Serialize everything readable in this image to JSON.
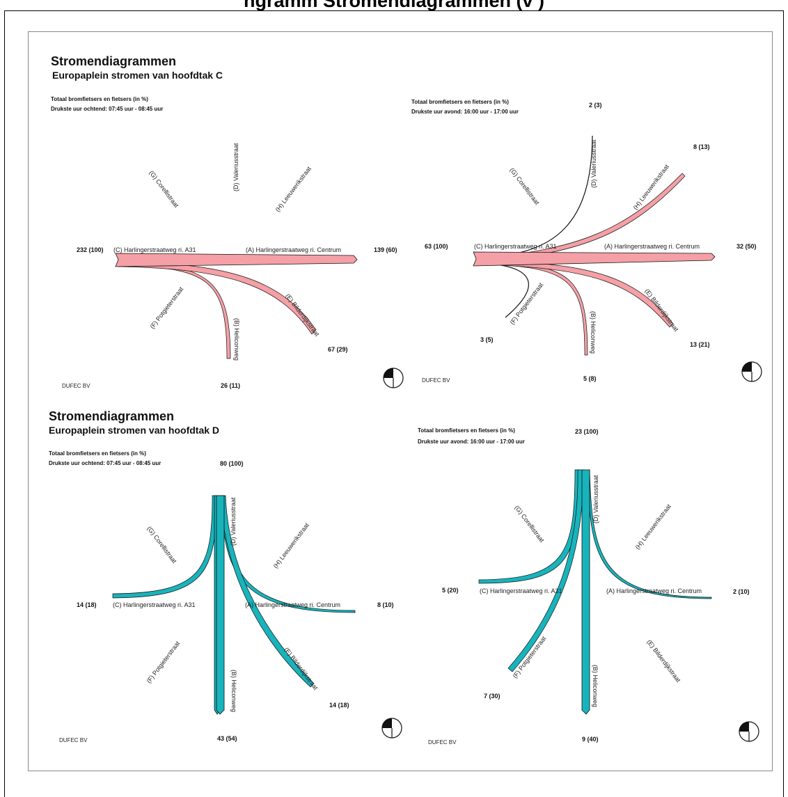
{
  "page": {
    "cut_title": "ngramm  Stromendiagrammen  (v                                 )"
  },
  "colors": {
    "pink": "#f4a0a6",
    "teal": "#18b4bc",
    "line": "#111111"
  },
  "panels": [
    {
      "id": "c-morning",
      "title": "Stromendiagrammen",
      "subtitle": "Europaplein stromen van hoofdtak C",
      "meta1": "Totaal bromfietsers en fietsers (in %)",
      "meta2": "Drukste uur ochtend: 07:45 uur - 08:45 uur",
      "firm": "DUFEC BV",
      "streets": {
        "C": "(C) Harlingerstraatweg ri. A31",
        "A": "(A) Harlingerstraatweg ri. Centrum",
        "G": "(G) Corellistraat",
        "D": "(D) Valeriusstraat",
        "H": "(H) Leeuwerikstraat",
        "F": "(F) Potgieterstraat",
        "B": "(B) Heliconweg",
        "E": "(E) Bilderdijkstraat"
      },
      "flows": {
        "total": "232 (100)",
        "A": "139 (60)",
        "E": "67 (29)",
        "B": "26 (11)"
      }
    },
    {
      "id": "c-evening",
      "meta1": "Totaal bromfietsers en fietsers (in %)",
      "meta2": "Drukste uur avond: 16:00 uur - 17:00 uur",
      "firm": "DUFEC BV",
      "streets": {
        "C": "(C) Harlingerstraatweg ri. A31",
        "A": "(A) Harlingerstraatweg ri. Centrum",
        "G": "(G) Corellistraat",
        "D": "(D) Valeriusstraat",
        "H": "(H) Leeuwerikstraat",
        "F": "(F) Potgieterstraat",
        "B": "(B) Heliconweg",
        "E": "(E) Bilderdijkstraat"
      },
      "flows": {
        "total": "63 (100)",
        "D": "2 (3)",
        "H": "8 (13)",
        "A": "32 (50)",
        "E": "13 (21)",
        "B": "5 (8)",
        "F": "3 (5)"
      }
    },
    {
      "id": "d-morning",
      "title": "Stromendiagrammen",
      "subtitle": "Europaplein stromen van hoofdtak D",
      "meta1": "Totaal bromfietsers en fietsers (in %)",
      "meta2": "Drukste uur ochtend: 07:45 uur - 08:45 uur",
      "firm": "DUFEC BV",
      "streets": {
        "C": "(C) Harlingerstraatweg ri. A31",
        "A": "(A) Harlingerstraatweg ri. Centrum",
        "G": "(G) Corellistraat",
        "D": "(D) Valeriusstraat",
        "H": "(H) Leeuwerikstraat",
        "F": "(F) Potgieterstraat",
        "B": "(B) Heliconweg",
        "E": "(E) Bilderdijkstraat"
      },
      "flows": {
        "total": "80 (100)",
        "C": "14 (18)",
        "A": "8 (10)",
        "E": "14 (18)",
        "B": "43 (54)"
      }
    },
    {
      "id": "d-evening",
      "meta1": "Totaal bromfietsers en fietsers (in %)",
      "meta2": "Drukste uur avond: 16:00 uur - 17:00 uur",
      "firm": "DUFEC BV",
      "streets": {
        "C": "(C) Harlingerstraatweg ri. A31",
        "A": "(A) Harlingerstraatweg ri. Centrum",
        "G": "(G) Corellistraat",
        "D": "(D) Valeriusstraat",
        "H": "(H) Leeuwerikstraat",
        "F": "(F) Potgieterstraat",
        "B": "(B) Heliconweg",
        "E": "(E) Bilderdijkstraat"
      },
      "flows": {
        "total": "23 (100)",
        "C": "5 (20)",
        "A": "2 (10)",
        "F": "7 (30)",
        "B": "9 (40)"
      }
    }
  ]
}
